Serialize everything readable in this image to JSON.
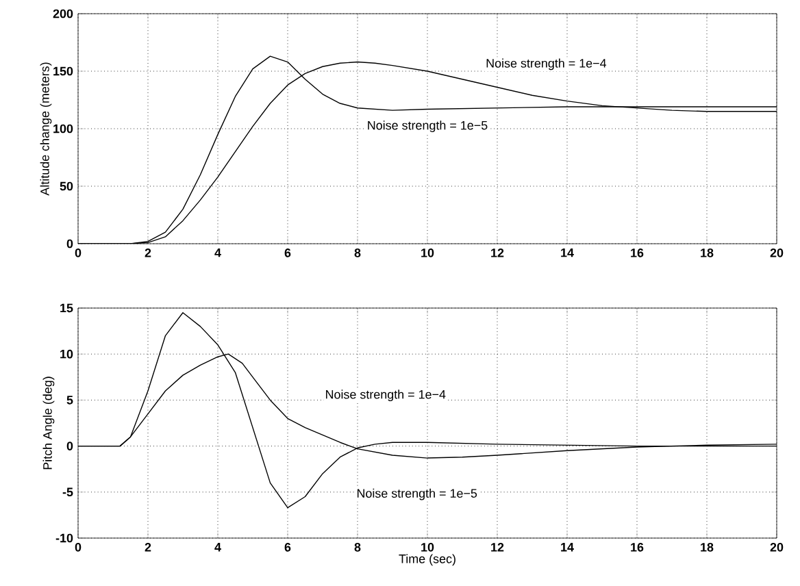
{
  "chart_data": [
    {
      "type": "line",
      "ylabel": "Altitude change (meters)",
      "xlim": [
        0,
        20
      ],
      "ylim": [
        0,
        200
      ],
      "xticks": [
        0,
        2,
        4,
        6,
        8,
        10,
        12,
        14,
        16,
        18,
        20
      ],
      "yticks": [
        0,
        50,
        100,
        150,
        200
      ],
      "grid": true,
      "line_style": "solid",
      "series": [
        {
          "color": "#000000",
          "x": [
            0,
            1.5,
            2,
            2.5,
            3,
            3.5,
            4,
            4.5,
            5,
            5.5,
            6,
            6.5,
            7,
            7.5,
            8,
            9,
            10,
            12,
            14,
            16,
            18,
            20
          ],
          "values": [
            0,
            0,
            2,
            10,
            30,
            60,
            95,
            128,
            152,
            163,
            158,
            143,
            130,
            122,
            118,
            116,
            117,
            118,
            119,
            119,
            119,
            119
          ]
        },
        {
          "color": "#000000",
          "x": [
            0,
            1.5,
            2,
            2.5,
            3,
            3.5,
            4,
            4.5,
            5,
            5.5,
            6,
            6.5,
            7,
            7.5,
            8,
            8.5,
            9,
            10,
            11,
            12,
            13,
            14,
            15,
            16,
            17,
            18,
            20
          ],
          "values": [
            0,
            0,
            1,
            6,
            20,
            38,
            58,
            80,
            102,
            122,
            138,
            148,
            154,
            157,
            158,
            157,
            155,
            150,
            143,
            136,
            129,
            124,
            120,
            118,
            116,
            115,
            115
          ]
        }
      ],
      "annotations": [
        "Noise strength = 1e−4",
        "Noise strength = 1e−5"
      ]
    },
    {
      "type": "line",
      "xlabel": "Time (sec)",
      "ylabel": "Pitch Angle (deg)",
      "xlim": [
        0,
        20
      ],
      "ylim": [
        -10,
        15
      ],
      "xticks": [
        0,
        2,
        4,
        6,
        8,
        10,
        12,
        14,
        16,
        18,
        20
      ],
      "yticks": [
        -10,
        -5,
        0,
        5,
        10,
        15
      ],
      "grid": true,
      "line_style": "solid",
      "series": [
        {
          "color": "#000000",
          "x": [
            0,
            1.2,
            1.5,
            2,
            2.5,
            3,
            3.5,
            4,
            4.5,
            5,
            5.5,
            6,
            6.5,
            7,
            7.5,
            8,
            8.5,
            9,
            10,
            12,
            14,
            16,
            20
          ],
          "values": [
            0,
            0,
            1,
            6,
            12,
            14.5,
            13,
            11,
            8,
            2,
            -4,
            -6.7,
            -5.5,
            -3,
            -1.2,
            -0.2,
            0.2,
            0.4,
            0.4,
            0.2,
            0.1,
            0,
            0
          ]
        },
        {
          "color": "#000000",
          "x": [
            0,
            1.2,
            1.5,
            2,
            2.5,
            3,
            3.5,
            4,
            4.3,
            4.7,
            5,
            5.5,
            6,
            6.5,
            7,
            7.5,
            8,
            9,
            10,
            11,
            12,
            14,
            16,
            18,
            20
          ],
          "values": [
            0,
            0,
            1,
            3.5,
            6,
            7.7,
            8.8,
            9.7,
            10,
            9,
            7.5,
            5,
            3,
            2,
            1.2,
            0.4,
            -0.3,
            -1,
            -1.3,
            -1.2,
            -1,
            -0.5,
            -0.1,
            0.1,
            0.2
          ]
        }
      ],
      "annotations": [
        "Noise strength = 1e−4",
        "Noise strength = 1e−5"
      ]
    }
  ]
}
